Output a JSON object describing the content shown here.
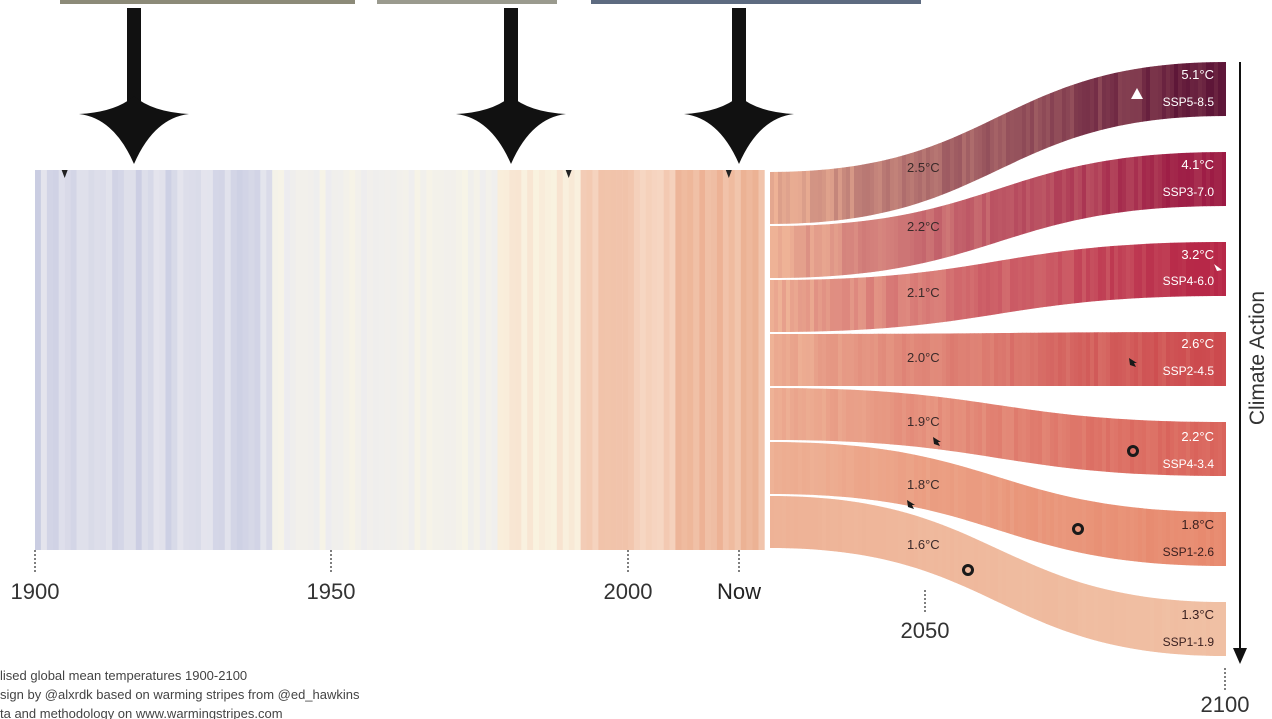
{
  "chart_data": {
    "type": "stripes",
    "title": "",
    "x_axis": {
      "ticks": [
        {
          "label": "1900",
          "value": 1900
        },
        {
          "label": "1950",
          "value": 1950
        },
        {
          "label": "2000",
          "value": 2000
        },
        {
          "label": "Now",
          "value": 2019
        },
        {
          "label": "2050",
          "value": 2050
        },
        {
          "label": "2100",
          "value": 2100
        }
      ]
    },
    "historical_range": [
      1900,
      2022
    ],
    "markers": [
      1905,
      1990,
      2017
    ],
    "scenarios": [
      {
        "name": "SSP5-8.5",
        "end_label": "5.1°C",
        "mid_label": "",
        "glyph": "triangle",
        "color": "#5e1638"
      },
      {
        "name": "SSP3-7.0",
        "end_label": "4.1°C",
        "mid_label": "2.5°C",
        "glyph": "",
        "color": "#9c1a44"
      },
      {
        "name": "SSP4-6.0",
        "end_label": "3.2°C",
        "mid_label": "2.2°C",
        "glyph": "arrow-white",
        "color": "#b72848"
      },
      {
        "name": "SSP2-4.5",
        "end_label": "2.6°C",
        "mid_label": "2.1°C",
        "glyph": "arrow",
        "color": "#cc4a4e"
      },
      {
        "name": "SSP4-3.4",
        "end_label": "2.2°C",
        "mid_label": "2.0°C",
        "glyph": "ring",
        "color": "#d9635b"
      },
      {
        "name": "",
        "end_label": "1.8°C",
        "mid_label": "1.9°C",
        "glyph": "ring",
        "color": "#e7896e"
      },
      {
        "name": "SSP1-2.6",
        "end_label": "",
        "mid_label": "1.8°C",
        "glyph": "ring",
        "color": "#eca584"
      },
      {
        "name": "SSP1-1.9",
        "end_label": "1.3°C",
        "mid_label": "1.6°C",
        "glyph": "",
        "color": "#f0c0a4"
      }
    ],
    "side_label": "Climate Action",
    "notes": [
      "lised global mean temperatures 1900-2100",
      "sign by @alxrdk based on warming stripes from @ed_hawkins",
      "ta and methodology on www.warmingstripes.com"
    ]
  }
}
